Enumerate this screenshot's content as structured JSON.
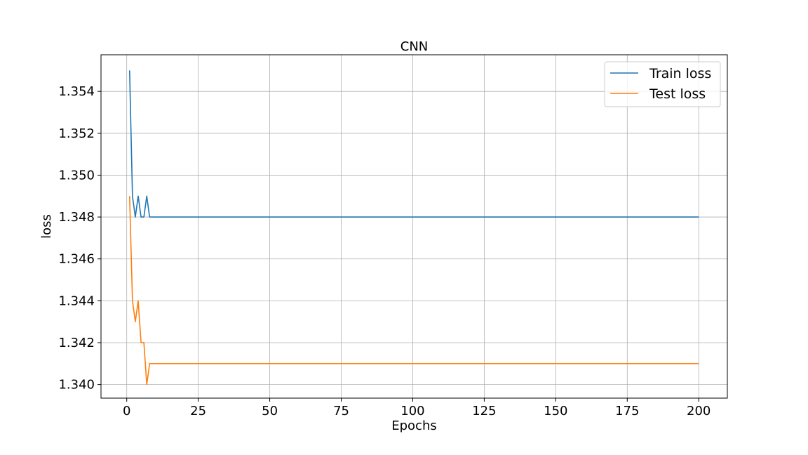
{
  "chart_data": {
    "type": "line",
    "title": "CNN",
    "xlabel": "Epochs",
    "ylabel": "loss",
    "xlim": [
      -9.0,
      210.0
    ],
    "ylim": [
      1.33935,
      1.35575
    ],
    "xticks": [
      0,
      25,
      50,
      75,
      100,
      125,
      150,
      175,
      200
    ],
    "yticks": [
      1.34,
      1.342,
      1.344,
      1.346,
      1.348,
      1.35,
      1.352,
      1.354
    ],
    "ytick_labels": [
      "1.340",
      "1.342",
      "1.344",
      "1.346",
      "1.348",
      "1.350",
      "1.352",
      "1.354"
    ],
    "grid": true,
    "legend_position": "top-right",
    "series": [
      {
        "name": "Train loss",
        "color": "#1f77b4",
        "x": [
          1,
          2,
          3,
          4,
          5,
          6,
          7,
          8,
          200
        ],
        "y": [
          1.355,
          1.349,
          1.348,
          1.349,
          1.348,
          1.348,
          1.349,
          1.348,
          1.348
        ]
      },
      {
        "name": "Test loss",
        "color": "#ff7f0e",
        "x": [
          1,
          2,
          3,
          4,
          5,
          6,
          7,
          8,
          200
        ],
        "y": [
          1.349,
          1.344,
          1.343,
          1.344,
          1.342,
          1.342,
          1.34,
          1.341,
          1.341
        ]
      }
    ]
  }
}
